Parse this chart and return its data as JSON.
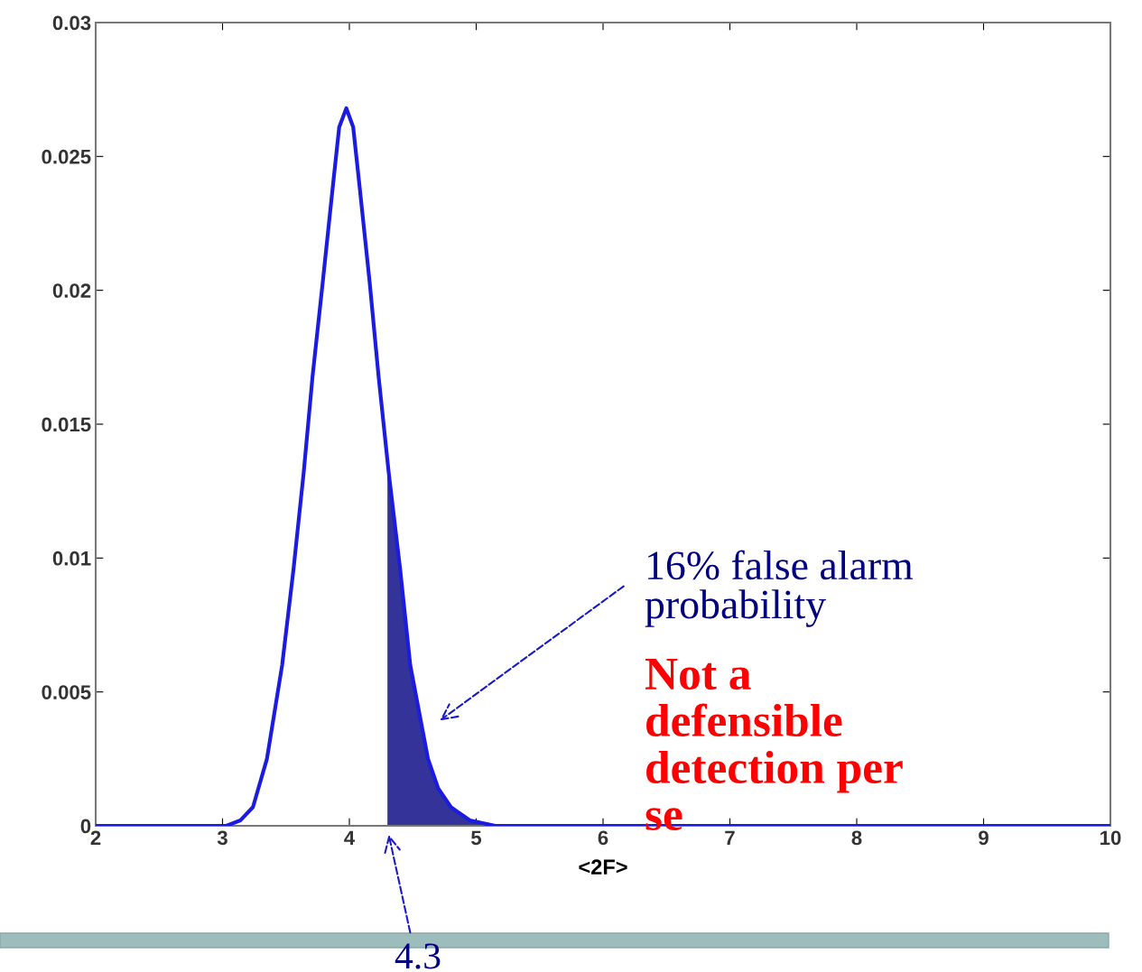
{
  "chart_data": {
    "type": "line",
    "xlabel": "<2F>",
    "xlim": [
      2,
      10
    ],
    "ylim": [
      0,
      0.03
    ],
    "xticks": [
      2,
      3,
      4,
      5,
      6,
      7,
      8,
      9,
      10
    ],
    "yticks": [
      0,
      0.005,
      0.01,
      0.015,
      0.02,
      0.025,
      0.03
    ],
    "grid": false,
    "marker": "none",
    "line_style": "solid",
    "series": [
      {
        "color": "#1c1ce0",
        "x": [
          2,
          2.9,
          3.03,
          3.14,
          3.24,
          3.35,
          3.47,
          3.56,
          3.64,
          3.71,
          3.79,
          3.87,
          3.92,
          3.976,
          4.03,
          4.08,
          4.16,
          4.23,
          4.31,
          4.4,
          4.48,
          4.62,
          4.7,
          4.8,
          4.95,
          5.15,
          10
        ],
        "values": [
          0,
          0,
          0,
          0.0002,
          0.0007,
          0.0025,
          0.006,
          0.0096,
          0.0132,
          0.0168,
          0.0203,
          0.0239,
          0.0261,
          0.0268,
          0.0261,
          0.0239,
          0.0203,
          0.0168,
          0.0132,
          0.0096,
          0.006,
          0.0025,
          0.0014,
          0.0007,
          0.0002,
          0,
          0
        ]
      },
      {
        "type": "area",
        "color": "#333399",
        "x": [
          4.3,
          4.31,
          4.4,
          4.48,
          4.62,
          4.7,
          4.8,
          4.95,
          5.15
        ],
        "values": [
          0.0136,
          0.0132,
          0.0096,
          0.006,
          0.0025,
          0.0014,
          0.0007,
          0.0002,
          0
        ]
      }
    ],
    "annotations": [
      "16% false alarm\nprobability",
      "Not a\ndefensible\ndetection per\nse",
      "4.3"
    ]
  }
}
